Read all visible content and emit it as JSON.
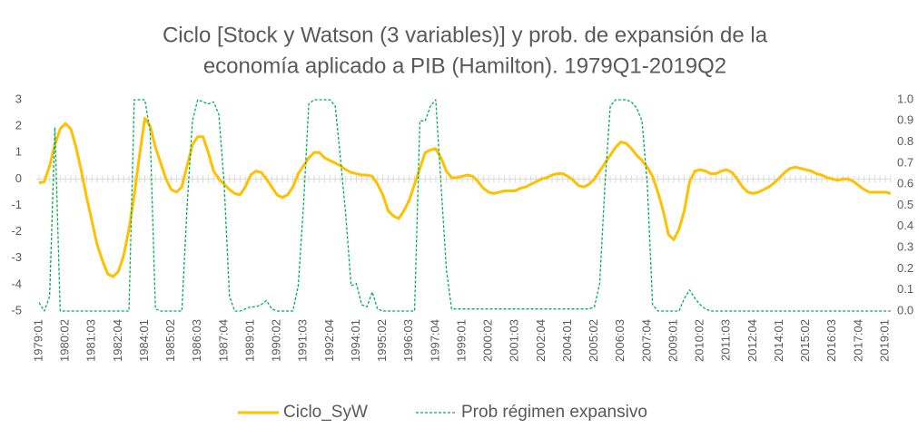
{
  "chart_data": {
    "type": "line",
    "title": [
      "Ciclo [Stock y Watson (3 variables)] y prob. de expansión de la",
      "economía aplicado a PIB (Hamilton). 1979Q1-2019Q2"
    ],
    "categories": [
      "1979:01",
      null,
      null,
      null,
      null,
      "1980:02",
      null,
      null,
      null,
      null,
      "1981:03",
      null,
      null,
      null,
      null,
      "1982:04",
      null,
      null,
      null,
      null,
      "1984:01",
      null,
      null,
      null,
      null,
      "1985:02",
      null,
      null,
      null,
      null,
      "1986:03",
      null,
      null,
      null,
      null,
      "1987:04",
      null,
      null,
      null,
      null,
      "1989:01",
      null,
      null,
      null,
      null,
      "1990:02",
      null,
      null,
      null,
      null,
      "1991:03",
      null,
      null,
      null,
      null,
      "1992:04",
      null,
      null,
      null,
      null,
      "1994:01",
      null,
      null,
      null,
      null,
      "1995:02",
      null,
      null,
      null,
      null,
      "1996:03",
      null,
      null,
      null,
      null,
      "1997:04",
      null,
      null,
      null,
      null,
      "1999:01",
      null,
      null,
      null,
      null,
      "2000:02",
      null,
      null,
      null,
      null,
      "2001:03",
      null,
      null,
      null,
      null,
      "2002:04",
      null,
      null,
      null,
      null,
      "2004:01",
      null,
      null,
      null,
      null,
      "2005:02",
      null,
      null,
      null,
      null,
      "2006:03",
      null,
      null,
      null,
      null,
      "2007:04",
      null,
      null,
      null,
      null,
      "2009:01",
      null,
      null,
      null,
      null,
      "2010:02",
      null,
      null,
      null,
      null,
      "2011:03",
      null,
      null,
      null,
      null,
      "2012:04",
      null,
      null,
      null,
      null,
      "2014:01",
      null,
      null,
      null,
      null,
      "2015:02",
      null,
      null,
      null,
      null,
      "2016:03",
      null,
      null,
      null,
      null,
      "2017:04",
      null,
      null,
      null,
      null,
      "2019:01",
      null
    ],
    "series": [
      {
        "name": "Ciclo_SyW",
        "color": "#FFC000",
        "axis": "y",
        "dashed": false,
        "values": [
          -0.15,
          -0.1,
          0.5,
          1.3,
          1.9,
          2.1,
          1.9,
          1.2,
          0.3,
          -0.7,
          -1.6,
          -2.5,
          -3.1,
          -3.6,
          -3.7,
          -3.5,
          -2.9,
          -1.9,
          -0.6,
          0.9,
          2.3,
          2.0,
          1.2,
          0.6,
          0.0,
          -0.4,
          -0.5,
          -0.3,
          0.5,
          1.3,
          1.6,
          1.6,
          1.0,
          0.3,
          0.0,
          -0.2,
          -0.4,
          -0.55,
          -0.6,
          -0.3,
          0.15,
          0.3,
          0.25,
          0.0,
          -0.3,
          -0.6,
          -0.7,
          -0.6,
          -0.3,
          0.2,
          0.5,
          0.8,
          1.0,
          1.0,
          0.8,
          0.7,
          0.6,
          0.5,
          0.35,
          0.25,
          0.2,
          0.15,
          0.15,
          0.1,
          -0.2,
          -0.6,
          -1.2,
          -1.4,
          -1.5,
          -1.2,
          -0.8,
          -0.2,
          0.4,
          1.0,
          1.1,
          1.15,
          0.8,
          0.3,
          0.05,
          0.05,
          0.1,
          0.15,
          0.1,
          -0.1,
          -0.35,
          -0.5,
          -0.55,
          -0.5,
          -0.45,
          -0.45,
          -0.45,
          -0.35,
          -0.3,
          -0.2,
          -0.1,
          0.0,
          0.05,
          0.15,
          0.2,
          0.2,
          0.1,
          -0.05,
          -0.25,
          -0.3,
          -0.2,
          0.0,
          0.3,
          0.6,
          0.9,
          1.2,
          1.4,
          1.35,
          1.15,
          0.9,
          0.7,
          0.45,
          0.1,
          -0.5,
          -1.2,
          -2.1,
          -2.3,
          -1.9,
          -1.2,
          -0.1,
          0.3,
          0.35,
          0.3,
          0.2,
          0.2,
          0.3,
          0.35,
          0.25,
          0.0,
          -0.3,
          -0.5,
          -0.55,
          -0.5,
          -0.4,
          -0.3,
          -0.15,
          0.05,
          0.25,
          0.4,
          0.45,
          0.4,
          0.35,
          0.3,
          0.2,
          0.15,
          0.05,
          0.0,
          -0.05,
          0.0,
          0.0,
          -0.1,
          -0.25,
          -0.4,
          -0.5,
          -0.5,
          -0.5,
          -0.5,
          -0.55
        ]
      },
      {
        "name": "Prob régimen expansivo",
        "color": "#00B050",
        "axis": "y2",
        "dashed": true,
        "values": [
          0.04,
          0,
          0.07,
          0.87,
          0,
          0,
          0,
          0,
          0,
          0,
          0,
          0,
          0,
          0,
          0,
          0,
          0,
          0,
          1,
          1,
          1,
          0.85,
          0.01,
          0,
          0,
          0,
          0,
          0,
          0.5,
          0.9,
          1,
          0.99,
          0.98,
          0.99,
          0.93,
          0.6,
          0.07,
          0,
          0,
          0.01,
          0.02,
          0.02,
          0.03,
          0.05,
          0.01,
          0,
          0,
          0,
          0,
          0.12,
          0.5,
          0.98,
          1,
          1,
          1,
          1,
          0.97,
          0.72,
          0.45,
          0.12,
          0.13,
          0.03,
          0.02,
          0.09,
          0.01,
          0,
          0,
          0,
          0,
          0,
          0,
          0,
          0.9,
          0.9,
          0.97,
          1,
          0.6,
          0.2,
          0.01,
          0.01,
          0.01,
          0.01,
          0.01,
          0.01,
          0.01,
          0.01,
          0.01,
          0.01,
          0.01,
          0.01,
          0.01,
          0.01,
          0.01,
          0.01,
          0.01,
          0.01,
          0.01,
          0.01,
          0.01,
          0.01,
          0.01,
          0.01,
          0.01,
          0.01,
          0.01,
          0.02,
          0.13,
          0.6,
          0.97,
          1,
          1,
          1,
          0.99,
          0.96,
          0.9,
          0.6,
          0.03,
          0,
          0,
          0,
          0,
          0,
          0.06,
          0.1,
          0.06,
          0.03,
          0.01,
          0,
          0,
          0,
          0,
          0,
          0,
          0,
          0,
          0,
          0,
          0,
          0,
          0,
          0,
          0,
          0,
          0,
          0,
          0,
          0,
          0,
          0,
          0,
          0,
          0,
          0,
          0,
          0,
          0,
          0,
          0,
          0,
          0,
          0,
          0
        ]
      }
    ],
    "ylim": [
      -5,
      3
    ],
    "yticks": [
      -5,
      -4,
      -3,
      -2,
      -1,
      0,
      1,
      2,
      3
    ],
    "y2lim": [
      0,
      1
    ],
    "y2ticks": [
      {
        "value": 0,
        "label": "0.0"
      },
      0.1,
      0.2,
      0.3,
      0.4,
      0.5,
      0.6,
      0.7,
      0.8,
      0.9,
      {
        "value": 1,
        "label": "1.0"
      }
    ],
    "legend": "bottom"
  }
}
